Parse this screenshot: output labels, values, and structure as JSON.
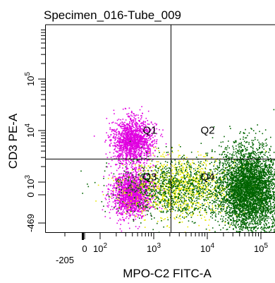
{
  "chart_data": {
    "type": "scatter",
    "title": "Specimen_016-Tube_009",
    "xlabel": "MPO-C2 FITC-A",
    "ylabel": "CD3 PE-A",
    "x_scale": "biexponential",
    "y_scale": "biexponential",
    "xlim": [
      -205,
      200000
    ],
    "ylim": [
      -469,
      200000
    ],
    "x_tick_labels": [
      {
        "value": -205,
        "label": "-205"
      },
      {
        "value": 0,
        "label": "0"
      },
      {
        "value": 100,
        "base": "10",
        "exp": "2"
      },
      {
        "value": 1000,
        "base": "10",
        "exp": "3"
      },
      {
        "value": 10000,
        "base": "10",
        "exp": "4"
      },
      {
        "value": 100000,
        "base": "10",
        "exp": "5"
      }
    ],
    "y_tick_labels": [
      {
        "value": -469,
        "label": "-469"
      },
      {
        "value": 0,
        "label": "0"
      },
      {
        "value": 1000,
        "base": "10",
        "exp": "3"
      },
      {
        "value": 10000,
        "base": "10",
        "exp": "4"
      },
      {
        "value": 100000,
        "base": "10",
        "exp": "5"
      }
    ],
    "quadrant_gate": {
      "x": 2100,
      "y": 2800
    },
    "quadrants": [
      {
        "name": "Q1"
      },
      {
        "name": "Q2"
      },
      {
        "name": "Q3"
      },
      {
        "name": "Q4"
      }
    ],
    "series": [
      {
        "color": "#e000e0",
        "clusters": [
          {
            "x": 400,
            "y": 6500,
            "count": 1500
          },
          {
            "x": 380,
            "y": 150,
            "count": 1700
          }
        ]
      },
      {
        "color": "#e8e800",
        "clusters": [
          {
            "x": 3000,
            "y": 600,
            "count": 1100
          }
        ]
      },
      {
        "color": "#006400",
        "clusters": [
          {
            "x": 2500,
            "y": 600,
            "count": 1000
          },
          {
            "x": 60000,
            "y": 400,
            "count": 4200
          }
        ]
      }
    ],
    "grid": false,
    "legend": "none"
  }
}
